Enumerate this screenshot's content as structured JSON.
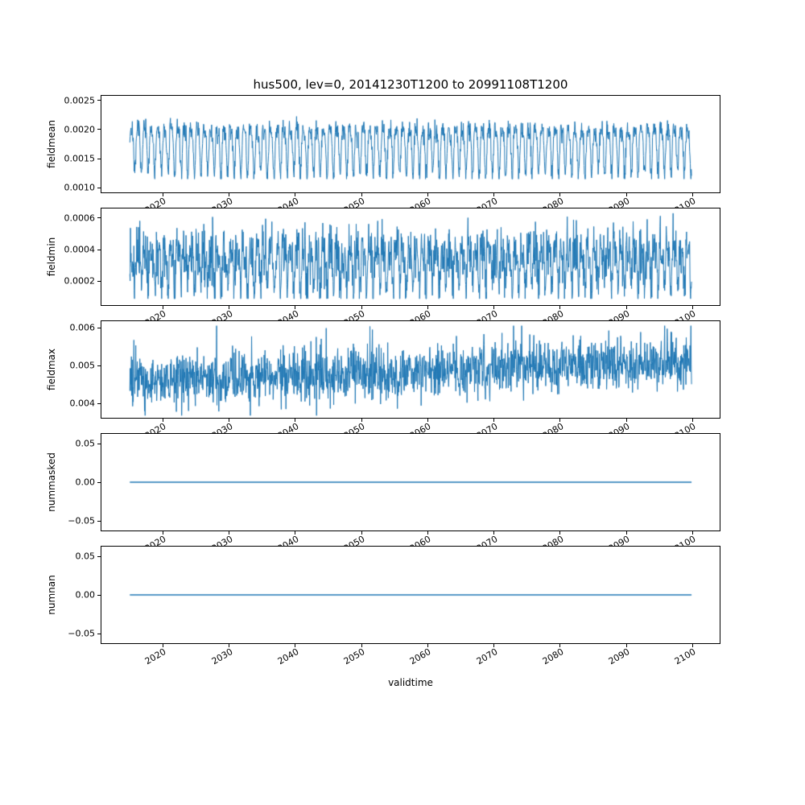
{
  "title": "hus500, lev=0, 20141230T1200 to 20991108T1200",
  "xlabel": "validtime",
  "chart_data": {
    "type": "line",
    "layout": "5 vertically stacked subplots sharing one x axis",
    "title": "hus500, lev=0, 20141230T1200 to 20991108T1200",
    "line_color": "#1f77b4",
    "x_axis": {
      "label": "validtime",
      "ticks": [
        2020,
        2030,
        2040,
        2050,
        2060,
        2070,
        2080,
        2090,
        2100
      ],
      "tick_labels": [
        "2020",
        "2030",
        "2040",
        "2050",
        "2060",
        "2070",
        "2080",
        "2090",
        "2100"
      ],
      "lim": [
        2010.7,
        2104.1
      ],
      "data_range": [
        2014.99,
        2099.85
      ],
      "tick_rotation_deg": 30
    },
    "subplots": [
      {
        "name": "fieldmean",
        "ylabel": "fieldmean",
        "yticks": [
          0.001,
          0.0015,
          0.002,
          0.0025
        ],
        "ytick_labels": [
          "0.0010",
          "0.0015",
          "0.0020",
          "0.0025"
        ],
        "ylim": [
          0.00092,
          0.00258
        ],
        "summary": "regular seasonal oscillation between ~0.0012 and ~0.0025",
        "signal": {
          "kind": "seasonal",
          "base": 0.00172,
          "amp1": 0.00038,
          "amp2": 0.00013,
          "noise": 9e-05,
          "trend": 0,
          "clamp": [
            0.00115,
            0.0025
          ],
          "seed": 7,
          "points": 1800
        }
      },
      {
        "name": "fieldmin",
        "ylabel": "fieldmin",
        "yticks": [
          0.0002,
          0.0004,
          0.0006
        ],
        "ytick_labels": [
          "0.0002",
          "0.0004",
          "0.0006"
        ],
        "ylim": [
          5e-05,
          0.00066
        ],
        "summary": "noisy seasonal oscillation between ~0.0001 and ~0.0006",
        "signal": {
          "kind": "seasonal",
          "base": 0.00032,
          "amp1": 0.0001,
          "amp2": 7e-05,
          "noise": 8e-05,
          "trend": 0,
          "clamp": [
            9e-05,
            0.00063
          ],
          "seed": 13,
          "points": 1800
        }
      },
      {
        "name": "fieldmax",
        "ylabel": "fieldmax",
        "yticks": [
          0.004,
          0.005,
          0.006
        ],
        "ytick_labels": [
          "0.004",
          "0.005",
          "0.006"
        ],
        "ylim": [
          0.00362,
          0.00618
        ],
        "summary": "noisy series around 0.0045-0.0050 with slight upward trend, spikes to ~0.006 and dips to ~0.0037",
        "signal": {
          "kind": "noisy",
          "base": 0.0046,
          "amp1": 6e-05,
          "amp2": 0,
          "noise": 0.00033,
          "trend": 6e-06,
          "clamp": [
            0.00368,
            0.00606
          ],
          "seed": 21,
          "points": 1800
        }
      },
      {
        "name": "nummasked",
        "ylabel": "nummasked",
        "yticks": [
          -0.05,
          0.0,
          0.05
        ],
        "ytick_labels": [
          "−0.05",
          "0.00",
          "0.05"
        ],
        "ylim": [
          -0.0625,
          0.0625
        ],
        "summary": "constant 0 for entire period",
        "signal": {
          "kind": "flat",
          "base": 0,
          "seed": 1,
          "points": 2
        }
      },
      {
        "name": "numnan",
        "ylabel": "numnan",
        "yticks": [
          -0.05,
          0.0,
          0.05
        ],
        "ytick_labels": [
          "−0.05",
          "0.00",
          "0.05"
        ],
        "ylim": [
          -0.0625,
          0.0625
        ],
        "summary": "constant 0 for entire period",
        "signal": {
          "kind": "flat",
          "base": 0,
          "seed": 2,
          "points": 2
        }
      }
    ]
  }
}
